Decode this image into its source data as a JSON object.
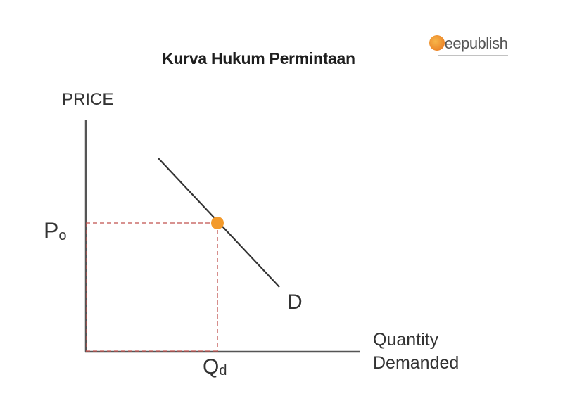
{
  "title": "Kurva Hukum Permintaan",
  "logo": {
    "text": "deepublish",
    "accent": "#ee8a22"
  },
  "axes": {
    "y_label": "PRICE",
    "x_label_line1": "Quantity",
    "x_label_line2": "Demanded"
  },
  "labels": {
    "price_point_main": "P",
    "price_point_sub": "o",
    "quantity_point_main": "Q",
    "quantity_point_sub": "d",
    "curve": "D"
  },
  "colors": {
    "axis": "#555555",
    "curve": "#333333",
    "guide": "#c0504d",
    "point": "#f39a2b"
  }
}
